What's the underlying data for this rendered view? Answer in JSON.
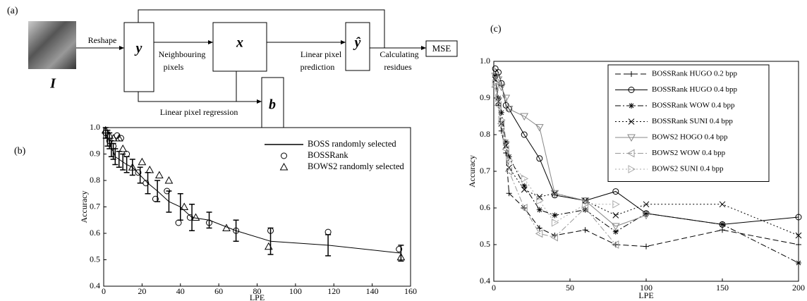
{
  "diagram": {
    "panel_label": "(a)",
    "image_label": "I",
    "nodes": [
      {
        "label": "y"
      },
      {
        "label": "x"
      },
      {
        "label": "b"
      },
      {
        "label": "ŷ"
      },
      {
        "label": "MSE"
      }
    ],
    "edge_labels": [
      [
        "Reshape"
      ],
      [
        "Neighbouring",
        "pixels"
      ],
      [
        "Linear pixel regression"
      ],
      [
        "Linear pixel",
        "prediction"
      ],
      [
        "Calculating",
        "residues"
      ]
    ]
  },
  "chart_data": [
    {
      "type": "line",
      "panel_label": "(b)",
      "xlabel": "LPE",
      "ylabel": "Accuracy",
      "xlim": [
        0,
        160
      ],
      "xticks": [
        0,
        20,
        40,
        60,
        80,
        100,
        120,
        140,
        160
      ],
      "ylim": [
        0.4,
        1
      ],
      "yticks": [
        0.4,
        0.5,
        0.6,
        0.7,
        0.8,
        0.9,
        {
          "value": 1,
          "label": "1.0"
        }
      ],
      "legend": "upper right",
      "legend_frame": false,
      "series": [
        {
          "name": "BOSS randomly selected",
          "color": "#000000",
          "linestyle": "-",
          "x": [
            1,
            2,
            3,
            4,
            5,
            6,
            8,
            10,
            12,
            15,
            19,
            23,
            28,
            34,
            40,
            46,
            55,
            69,
            87,
            117,
            155
          ],
          "values": [
            0.98,
            0.96,
            0.95,
            0.92,
            0.91,
            0.89,
            0.88,
            0.87,
            0.86,
            0.85,
            0.82,
            0.79,
            0.76,
            0.72,
            0.7,
            0.66,
            0.65,
            0.61,
            0.57,
            0.555,
            0.525
          ],
          "errors": [
            0.02,
            0.03,
            0.03,
            0.03,
            0.03,
            0.03,
            0.03,
            0.03,
            0.03,
            0.03,
            0.03,
            0.04,
            0.04,
            0.04,
            0.05,
            0.05,
            0.03,
            0.04,
            0.05,
            0.04,
            0.03
          ]
        },
        {
          "name": "BOSSRank",
          "color": "#000000",
          "marker": "o",
          "x": [
            1,
            3,
            5,
            7,
            9,
            12,
            18,
            22,
            27,
            33,
            39,
            45,
            55,
            69,
            87,
            117,
            154
          ],
          "values": [
            0.98,
            0.95,
            0.93,
            0.97,
            0.96,
            0.9,
            0.83,
            0.79,
            0.73,
            0.76,
            0.64,
            0.66,
            0.64,
            0.61,
            0.61,
            0.605,
            0.54
          ]
        },
        {
          "name": "BOWS2 randomly selected",
          "color": "#000000",
          "marker": "^",
          "x": [
            1,
            3,
            5,
            8,
            10,
            15,
            20,
            24,
            29,
            34,
            42,
            48,
            64,
            86,
            155
          ],
          "values": [
            0.99,
            0.97,
            0.96,
            0.96,
            0.92,
            0.85,
            0.87,
            0.84,
            0.82,
            0.8,
            0.7,
            0.66,
            0.62,
            0.55,
            0.51
          ]
        }
      ]
    },
    {
      "type": "line",
      "panel_label": "(c)",
      "xlabel": "LPE",
      "ylabel": "Accuracy",
      "xlim": [
        0,
        200
      ],
      "xticks": [
        0,
        50,
        100,
        150,
        200
      ],
      "ylim": [
        0.4,
        1
      ],
      "yticks": [
        0.4,
        0.5,
        0.6,
        0.7,
        0.8,
        0.9,
        {
          "value": 1,
          "label": "1.0"
        }
      ],
      "legend": "upper right",
      "legend_frame": true,
      "x": [
        1,
        3,
        5,
        8,
        10,
        20,
        30,
        40,
        60,
        80,
        100,
        150,
        200
      ],
      "series": [
        {
          "name": "BOSSRank HUGO 0.2 bpp",
          "color": "#000000",
          "linestyle": "--",
          "marker": "+",
          "values": [
            0.96,
            0.88,
            0.81,
            0.75,
            0.64,
            0.6,
            0.545,
            0.525,
            0.54,
            0.5,
            0.495,
            0.54,
            0.5
          ]
        },
        {
          "name": "BOSSRank HUGO 0.4 bpp",
          "color": "#000000",
          "linestyle": "-",
          "marker": "o",
          "values": [
            0.98,
            0.97,
            0.94,
            0.88,
            0.87,
            0.8,
            0.735,
            0.635,
            0.62,
            0.645,
            0.585,
            0.555,
            0.575
          ]
        },
        {
          "name": "BOSSRank WOW 0.4 bpp",
          "color": "#000000",
          "linestyle": "-.",
          "marker": "*",
          "values": [
            0.96,
            0.9,
            0.86,
            0.78,
            0.74,
            0.66,
            0.595,
            0.58,
            0.595,
            0.535,
            0.585,
            0.555,
            0.45
          ]
        },
        {
          "name": "BOSSRank SUNI 0.4 bpp",
          "color": "#000000",
          "linestyle": ":",
          "marker": "x",
          "values": [
            0.95,
            0.89,
            0.83,
            0.77,
            0.71,
            0.65,
            0.63,
            0.64,
            0.62,
            0.58,
            0.61,
            0.61,
            0.525
          ]
        },
        {
          "name": "BOWS2 HOGO 0.4 bpp",
          "color": "#888888",
          "linestyle": "-",
          "marker": "v",
          "values": [
            0.96,
            0.95,
            0.93,
            0.9,
            0.87,
            0.85,
            0.82,
            0.64,
            0.62,
            0.55,
            0.58,
            null,
            null
          ]
        },
        {
          "name": "BOWS2 WOW 0.4 bpp",
          "color": "#999999",
          "linestyle": "-.",
          "marker": "<",
          "values": [
            0.93,
            0.88,
            0.83,
            0.76,
            0.7,
            0.6,
            0.53,
            0.52,
            0.6,
            0.5,
            null,
            null,
            null
          ]
        },
        {
          "name": "BOWS2 SUNI 0.4 bpp",
          "color": "#aaaaaa",
          "linestyle": ":",
          "marker": ">",
          "values": [
            0.94,
            0.9,
            0.84,
            0.78,
            0.73,
            0.68,
            0.62,
            0.56,
            0.61,
            0.61,
            null,
            null,
            null
          ]
        }
      ]
    }
  ]
}
